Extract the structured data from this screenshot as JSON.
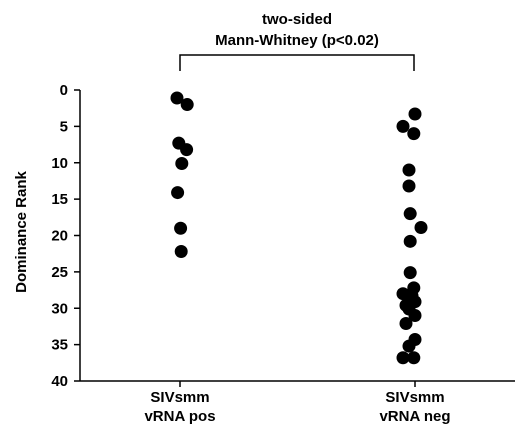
{
  "chart_data": {
    "type": "scatter",
    "title": "",
    "ylabel": "Dominance Rank",
    "xlabel": "",
    "y_inverted": true,
    "ylim": [
      0,
      40
    ],
    "yticks": [
      "0",
      "5",
      "10",
      "15",
      "20",
      "25",
      "30",
      "35",
      "40"
    ],
    "categories": [
      {
        "line1": "SIVsmm",
        "line2": "vRNA pos"
      },
      {
        "line1": "SIVsmm",
        "line2": "vRNA neg"
      }
    ],
    "annotation": {
      "line1": "two-sided",
      "line2": "Mann-Whitney (p<0.02)"
    },
    "series": [
      {
        "category_index": 0,
        "points": [
          {
            "x": -0.05,
            "y": 1.1
          },
          {
            "x": 0.12,
            "y": 2.0
          },
          {
            "x": -0.02,
            "y": 7.3
          },
          {
            "x": 0.11,
            "y": 8.2
          },
          {
            "x": 0.03,
            "y": 10.1
          },
          {
            "x": -0.04,
            "y": 14.1
          },
          {
            "x": 0.01,
            "y": 19.0
          },
          {
            "x": 0.02,
            "y": 22.2
          }
        ]
      },
      {
        "category_index": 1,
        "points": [
          {
            "x": 0.0,
            "y": 3.3
          },
          {
            "x": -0.2,
            "y": 5.0
          },
          {
            "x": -0.02,
            "y": 6.0
          },
          {
            "x": -0.1,
            "y": 11.0
          },
          {
            "x": -0.1,
            "y": 13.2
          },
          {
            "x": -0.08,
            "y": 17.0
          },
          {
            "x": 0.1,
            "y": 18.9
          },
          {
            "x": -0.08,
            "y": 20.8
          },
          {
            "x": -0.08,
            "y": 25.1
          },
          {
            "x": -0.02,
            "y": 27.2
          },
          {
            "x": -0.2,
            "y": 28.0
          },
          {
            "x": -0.05,
            "y": 28.3
          },
          {
            "x": 0.0,
            "y": 29.1
          },
          {
            "x": -0.15,
            "y": 29.6
          },
          {
            "x": -0.1,
            "y": 30.1
          },
          {
            "x": 0.0,
            "y": 31.0
          },
          {
            "x": -0.15,
            "y": 32.1
          },
          {
            "x": 0.0,
            "y": 34.3
          },
          {
            "x": -0.1,
            "y": 35.2
          },
          {
            "x": -0.2,
            "y": 36.8
          },
          {
            "x": -0.02,
            "y": 36.8
          }
        ]
      }
    ],
    "colors": {
      "point": "#000000",
      "axis": "#000000"
    }
  }
}
